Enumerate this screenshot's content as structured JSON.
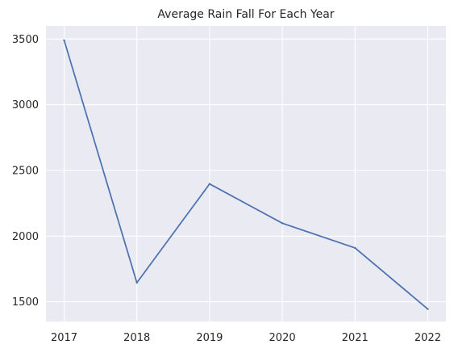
{
  "chart_data": {
    "type": "line",
    "title": "Average Rain Fall For Each Year",
    "xlabel": "",
    "ylabel": "",
    "x": [
      "2017",
      "2018",
      "2019",
      "2020",
      "2021",
      "2022"
    ],
    "series": [
      {
        "values": [
          3490,
          1645,
          2397,
          2098,
          1910,
          1445
        ]
      }
    ],
    "xlim": [
      2016.75,
      2022.25
    ],
    "ylim": [
      1350,
      3600
    ],
    "yticks": [
      1500,
      2000,
      2500,
      3000,
      3500
    ],
    "xtick_labels": [
      "2017",
      "2018",
      "2019",
      "2020",
      "2021",
      "2022"
    ],
    "ytick_labels": [
      "1500",
      "2000",
      "2500",
      "3000",
      "3500"
    ],
    "grid": true,
    "legend": "none",
    "colors": {
      "line": "#4c72b0",
      "plot_background": "#eaeaf2",
      "grid": "#ffffff",
      "text": "#262626"
    }
  }
}
